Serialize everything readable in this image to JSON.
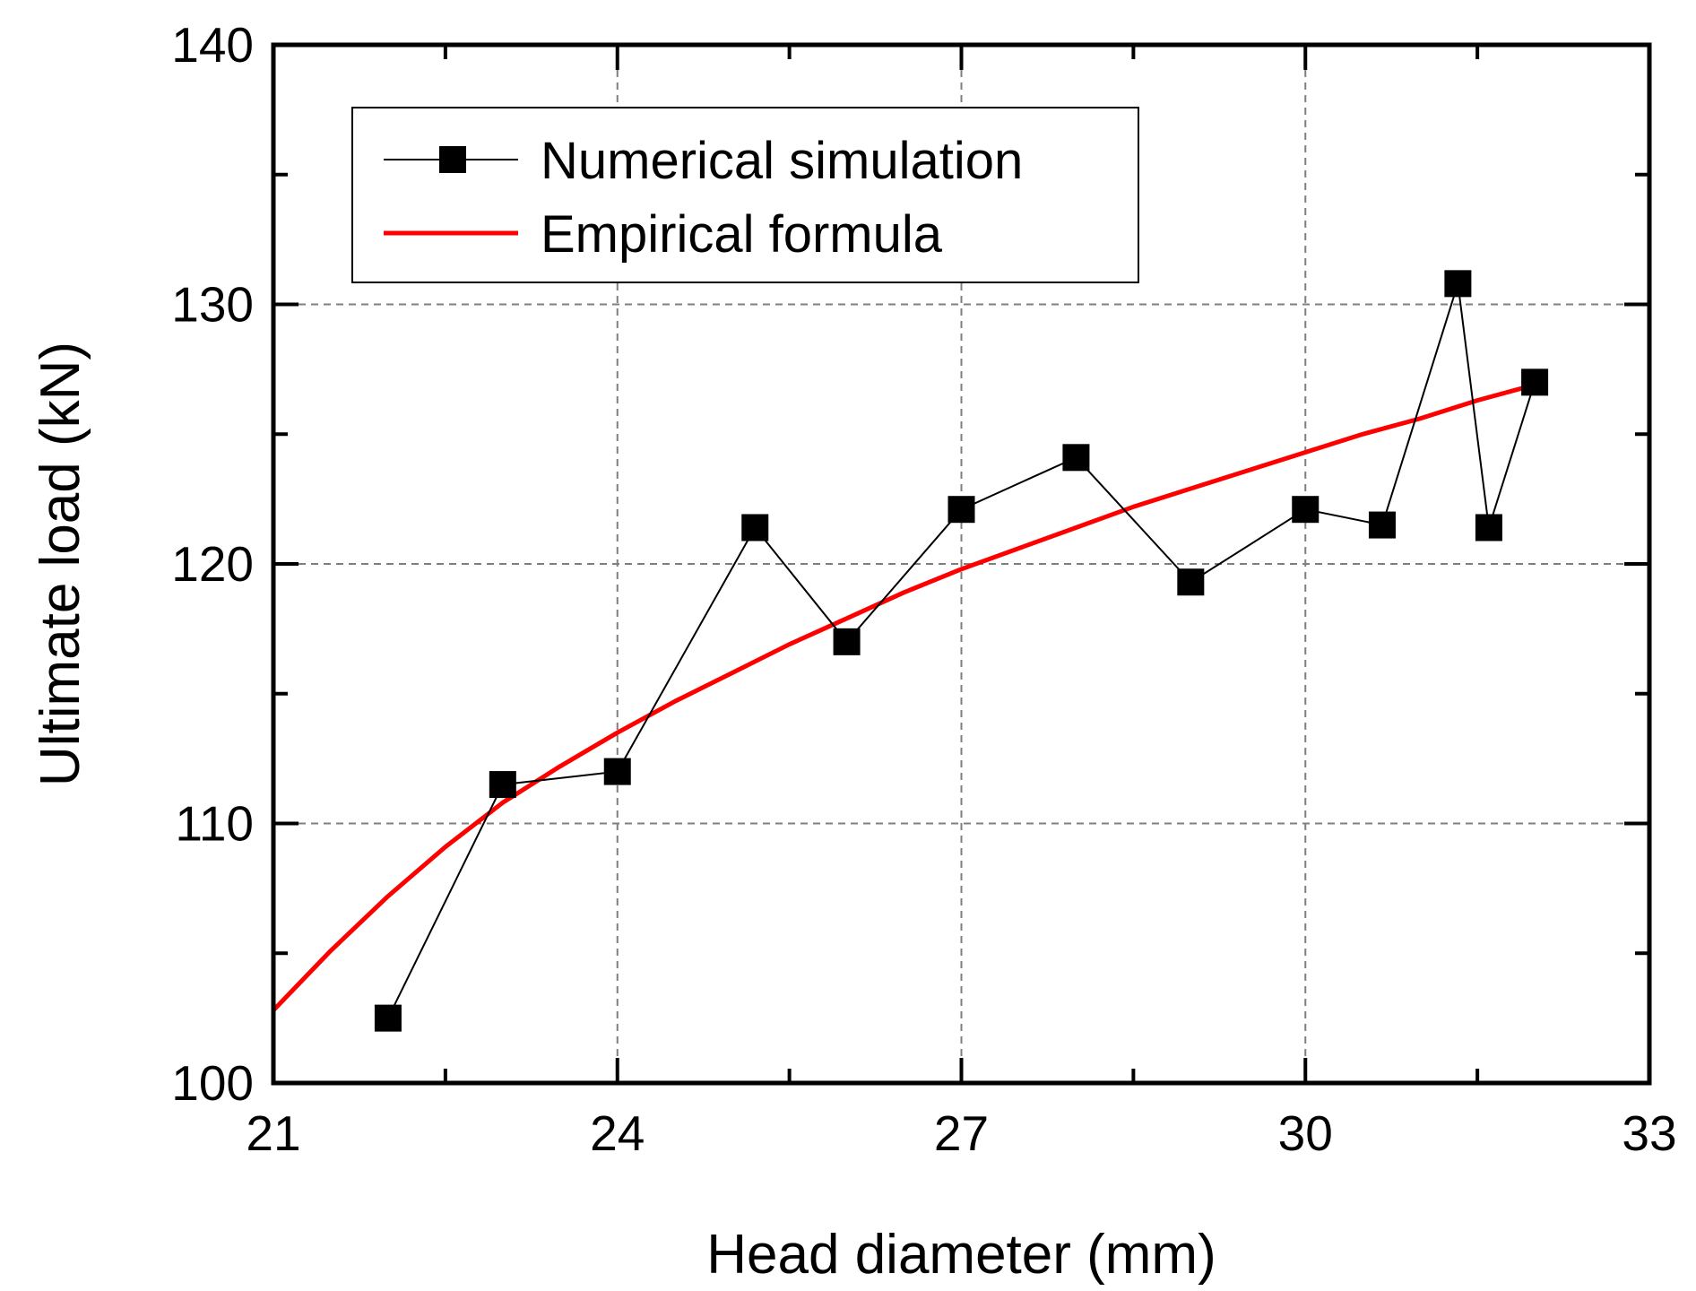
{
  "chart_data": {
    "type": "line",
    "title": "",
    "xlabel": "Head diameter (mm)",
    "ylabel": "Ultimate load (kN)",
    "xlim": [
      21,
      33
    ],
    "ylim": [
      100,
      140
    ],
    "xticks": [
      "21",
      "24",
      "27",
      "30",
      "33"
    ],
    "yticks": [
      "100",
      "110",
      "120",
      "130",
      "140"
    ],
    "grid": true,
    "legend_position": "top-left",
    "series": [
      {
        "name": "Numerical simulation",
        "style": "line-square-markers",
        "color": "#000000",
        "x": [
          22.0,
          23.0,
          24.0,
          25.2,
          26.0,
          27.0,
          28.0,
          29.0,
          30.0,
          30.67,
          31.33,
          31.6,
          32.0
        ],
        "y": [
          102.5,
          111.5,
          112.0,
          121.4,
          117.0,
          122.1,
          124.1,
          119.3,
          122.1,
          121.5,
          130.8,
          121.4,
          127.0
        ]
      },
      {
        "name": "Empirical formula",
        "style": "line",
        "color": "#ff0000",
        "x": [
          21.0,
          21.5,
          22.0,
          22.5,
          23.0,
          23.5,
          24.0,
          24.5,
          25.0,
          25.5,
          26.0,
          26.5,
          27.0,
          27.5,
          28.0,
          28.5,
          29.0,
          29.5,
          30.0,
          30.5,
          31.0,
          31.5,
          32.0
        ],
        "y": [
          102.8,
          105.1,
          107.2,
          109.1,
          110.8,
          112.2,
          113.5,
          114.7,
          115.8,
          116.9,
          117.9,
          118.9,
          119.8,
          120.6,
          121.4,
          122.2,
          122.9,
          123.6,
          124.3,
          125.0,
          125.6,
          126.3,
          126.9
        ]
      }
    ]
  }
}
